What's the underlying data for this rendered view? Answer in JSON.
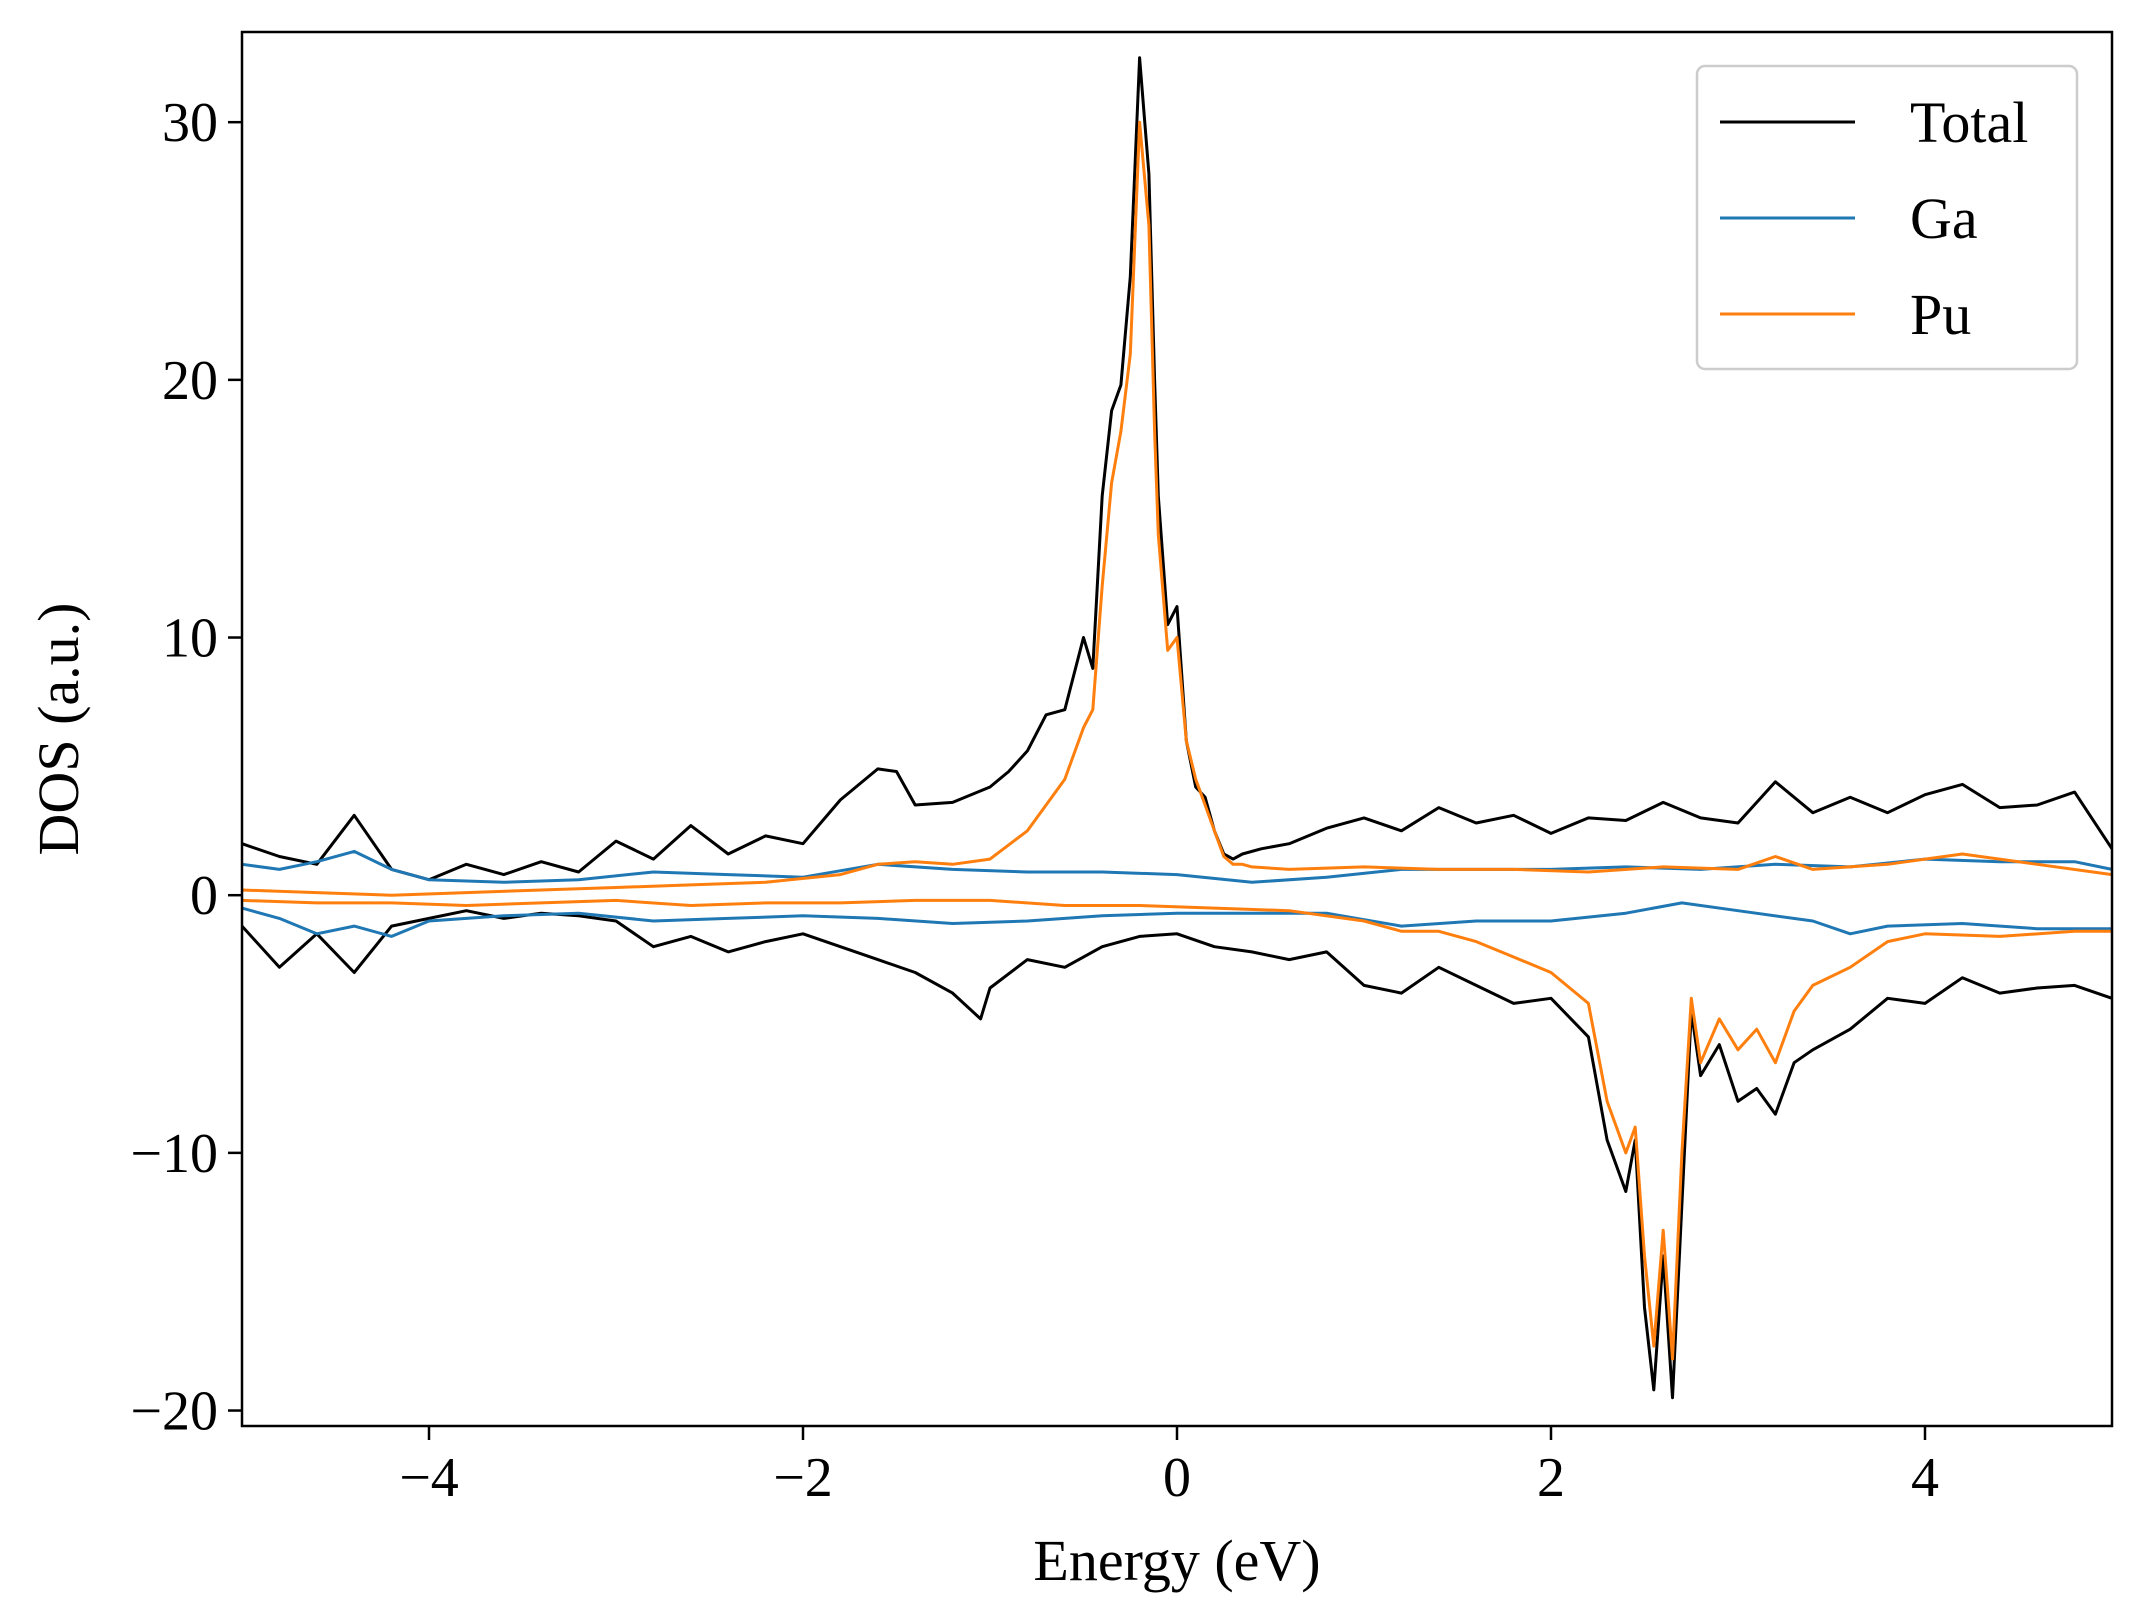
{
  "chart_data": {
    "type": "line",
    "title": "",
    "xlabel": "Energy (eV)",
    "ylabel": "DOS (a.u.)",
    "xlim": [
      -5,
      5
    ],
    "ylim": [
      -20.6,
      33.5
    ],
    "xticks": [
      -4,
      -2,
      0,
      2,
      4
    ],
    "xtick_labels": [
      "−4",
      "−2",
      "0",
      "2",
      "4"
    ],
    "yticks": [
      -20,
      -10,
      0,
      10,
      20,
      30
    ],
    "ytick_labels": [
      "−20",
      "−10",
      "0",
      "10",
      "20",
      "30"
    ],
    "grid": false,
    "legend_position": "top-right",
    "series": [
      {
        "name": "Total",
        "color": "#000000",
        "spin": "up",
        "x": [
          -5.0,
          -4.8,
          -4.6,
          -4.4,
          -4.2,
          -4.0,
          -3.8,
          -3.6,
          -3.4,
          -3.2,
          -3.0,
          -2.8,
          -2.6,
          -2.4,
          -2.2,
          -2.0,
          -1.8,
          -1.6,
          -1.5,
          -1.4,
          -1.2,
          -1.0,
          -0.9,
          -0.8,
          -0.7,
          -0.6,
          -0.5,
          -0.45,
          -0.4,
          -0.35,
          -0.3,
          -0.25,
          -0.2,
          -0.15,
          -0.12,
          -0.1,
          -0.05,
          0.0,
          0.05,
          0.1,
          0.15,
          0.2,
          0.25,
          0.3,
          0.35,
          0.45,
          0.6,
          0.8,
          1.0,
          1.2,
          1.4,
          1.6,
          1.8,
          2.0,
          2.2,
          2.4,
          2.6,
          2.8,
          3.0,
          3.2,
          3.4,
          3.6,
          3.8,
          4.0,
          4.2,
          4.4,
          4.6,
          4.8,
          5.0
        ],
        "y": [
          2.0,
          1.5,
          1.2,
          3.1,
          1.0,
          0.6,
          1.2,
          0.8,
          1.3,
          0.9,
          2.1,
          1.4,
          2.7,
          1.6,
          2.3,
          2.0,
          3.7,
          4.9,
          4.8,
          3.5,
          3.6,
          4.2,
          4.8,
          5.6,
          7.0,
          7.2,
          10.0,
          8.8,
          15.5,
          18.8,
          19.8,
          24.0,
          32.5,
          28.0,
          20.0,
          15.5,
          10.5,
          11.2,
          6.0,
          4.2,
          3.8,
          2.5,
          1.6,
          1.4,
          1.6,
          1.8,
          2.0,
          2.6,
          3.0,
          2.5,
          3.4,
          2.8,
          3.1,
          2.4,
          3.0,
          2.9,
          3.6,
          3.0,
          2.8,
          4.4,
          3.2,
          3.8,
          3.2,
          3.9,
          4.3,
          3.4,
          3.5,
          4.0,
          1.8
        ]
      },
      {
        "name": "Total",
        "color": "#000000",
        "spin": "down",
        "x": [
          -5.0,
          -4.8,
          -4.6,
          -4.4,
          -4.2,
          -4.0,
          -3.8,
          -3.6,
          -3.4,
          -3.2,
          -3.0,
          -2.8,
          -2.6,
          -2.4,
          -2.2,
          -2.0,
          -1.8,
          -1.6,
          -1.4,
          -1.2,
          -1.05,
          -1.0,
          -0.8,
          -0.6,
          -0.4,
          -0.2,
          0.0,
          0.2,
          0.4,
          0.6,
          0.8,
          1.0,
          1.2,
          1.4,
          1.6,
          1.8,
          2.0,
          2.2,
          2.3,
          2.4,
          2.45,
          2.5,
          2.55,
          2.6,
          2.65,
          2.7,
          2.75,
          2.8,
          2.9,
          3.0,
          3.1,
          3.2,
          3.3,
          3.4,
          3.6,
          3.8,
          4.0,
          4.2,
          4.4,
          4.6,
          4.8,
          5.0
        ],
        "y": [
          -1.2,
          -2.8,
          -1.5,
          -3.0,
          -1.2,
          -0.9,
          -0.6,
          -0.9,
          -0.7,
          -0.8,
          -1.0,
          -2.0,
          -1.6,
          -2.2,
          -1.8,
          -1.5,
          -2.0,
          -2.5,
          -3.0,
          -3.8,
          -4.8,
          -3.6,
          -2.5,
          -2.8,
          -2.0,
          -1.6,
          -1.5,
          -2.0,
          -2.2,
          -2.5,
          -2.2,
          -3.5,
          -3.8,
          -2.8,
          -3.5,
          -4.2,
          -4.0,
          -5.5,
          -9.5,
          -11.5,
          -9.5,
          -16.0,
          -19.2,
          -14.0,
          -19.5,
          -12.0,
          -4.5,
          -7.0,
          -5.8,
          -8.0,
          -7.5,
          -8.5,
          -6.5,
          -6.0,
          -5.2,
          -4.0,
          -4.2,
          -3.2,
          -3.8,
          -3.6,
          -3.5,
          -4.0
        ]
      },
      {
        "name": "Ga",
        "color": "#1f77b4",
        "spin": "up",
        "x": [
          -5.0,
          -4.8,
          -4.6,
          -4.4,
          -4.2,
          -4.0,
          -3.6,
          -3.2,
          -2.8,
          -2.4,
          -2.0,
          -1.6,
          -1.2,
          -0.8,
          -0.4,
          0.0,
          0.4,
          0.8,
          1.2,
          1.6,
          2.0,
          2.4,
          2.8,
          3.2,
          3.6,
          4.0,
          4.4,
          4.8,
          5.0
        ],
        "y": [
          1.2,
          1.0,
          1.3,
          1.7,
          1.0,
          0.6,
          0.5,
          0.6,
          0.9,
          0.8,
          0.7,
          1.2,
          1.0,
          0.9,
          0.9,
          0.8,
          0.5,
          0.7,
          1.0,
          1.0,
          1.0,
          1.1,
          1.0,
          1.2,
          1.1,
          1.4,
          1.3,
          1.3,
          1.0
        ]
      },
      {
        "name": "Ga",
        "color": "#1f77b4",
        "spin": "down",
        "x": [
          -5.0,
          -4.8,
          -4.6,
          -4.4,
          -4.2,
          -4.0,
          -3.6,
          -3.2,
          -2.8,
          -2.4,
          -2.0,
          -1.6,
          -1.2,
          -0.8,
          -0.4,
          0.0,
          0.4,
          0.8,
          1.2,
          1.6,
          2.0,
          2.4,
          2.7,
          3.0,
          3.4,
          3.6,
          3.8,
          4.2,
          4.6,
          5.0
        ],
        "y": [
          -0.5,
          -0.9,
          -1.5,
          -1.2,
          -1.6,
          -1.0,
          -0.8,
          -0.7,
          -1.0,
          -0.9,
          -0.8,
          -0.9,
          -1.1,
          -1.0,
          -0.8,
          -0.7,
          -0.7,
          -0.7,
          -1.2,
          -1.0,
          -1.0,
          -0.7,
          -0.3,
          -0.6,
          -1.0,
          -1.5,
          -1.2,
          -1.1,
          -1.3,
          -1.3
        ]
      },
      {
        "name": "Pu",
        "color": "#ff7f0e",
        "spin": "up",
        "x": [
          -5.0,
          -4.6,
          -4.2,
          -3.8,
          -3.4,
          -3.0,
          -2.6,
          -2.2,
          -1.8,
          -1.6,
          -1.4,
          -1.2,
          -1.0,
          -0.8,
          -0.6,
          -0.5,
          -0.45,
          -0.4,
          -0.35,
          -0.3,
          -0.25,
          -0.2,
          -0.15,
          -0.12,
          -0.1,
          -0.05,
          0.0,
          0.05,
          0.1,
          0.15,
          0.2,
          0.25,
          0.3,
          0.35,
          0.4,
          0.6,
          1.0,
          1.4,
          1.8,
          2.2,
          2.6,
          3.0,
          3.2,
          3.4,
          3.8,
          4.2,
          4.6,
          5.0
        ],
        "y": [
          0.2,
          0.1,
          0.0,
          0.1,
          0.2,
          0.3,
          0.4,
          0.5,
          0.8,
          1.2,
          1.3,
          1.2,
          1.4,
          2.5,
          4.5,
          6.5,
          7.2,
          12.0,
          16.0,
          18.0,
          21.0,
          30.0,
          26.0,
          18.0,
          14.0,
          9.5,
          10.0,
          6.0,
          4.5,
          3.5,
          2.5,
          1.5,
          1.2,
          1.2,
          1.1,
          1.0,
          1.1,
          1.0,
          1.0,
          0.9,
          1.1,
          1.0,
          1.5,
          1.0,
          1.2,
          1.6,
          1.2,
          0.8
        ]
      },
      {
        "name": "Pu",
        "color": "#ff7f0e",
        "spin": "down",
        "x": [
          -5.0,
          -4.6,
          -4.2,
          -3.8,
          -3.4,
          -3.0,
          -2.6,
          -2.2,
          -1.8,
          -1.4,
          -1.0,
          -0.6,
          -0.2,
          0.2,
          0.6,
          1.0,
          1.2,
          1.4,
          1.6,
          1.8,
          2.0,
          2.2,
          2.3,
          2.4,
          2.45,
          2.5,
          2.55,
          2.6,
          2.65,
          2.7,
          2.75,
          2.8,
          2.9,
          3.0,
          3.1,
          3.2,
          3.3,
          3.4,
          3.6,
          3.8,
          4.0,
          4.4,
          4.8,
          5.0
        ],
        "y": [
          -0.2,
          -0.3,
          -0.3,
          -0.4,
          -0.3,
          -0.2,
          -0.4,
          -0.3,
          -0.3,
          -0.2,
          -0.2,
          -0.4,
          -0.4,
          -0.5,
          -0.6,
          -1.0,
          -1.4,
          -1.4,
          -1.8,
          -2.4,
          -3.0,
          -4.2,
          -8.0,
          -10.0,
          -9.0,
          -14.0,
          -17.5,
          -13.0,
          -18.0,
          -10.0,
          -4.0,
          -6.5,
          -4.8,
          -6.0,
          -5.2,
          -6.5,
          -4.5,
          -3.5,
          -2.8,
          -1.8,
          -1.5,
          -1.6,
          -1.4,
          -1.4
        ]
      }
    ],
    "legend": [
      {
        "label": "Total",
        "color": "#000000"
      },
      {
        "label": "Ga",
        "color": "#1f77b4"
      },
      {
        "label": "Pu",
        "color": "#ff7f0e"
      }
    ]
  }
}
